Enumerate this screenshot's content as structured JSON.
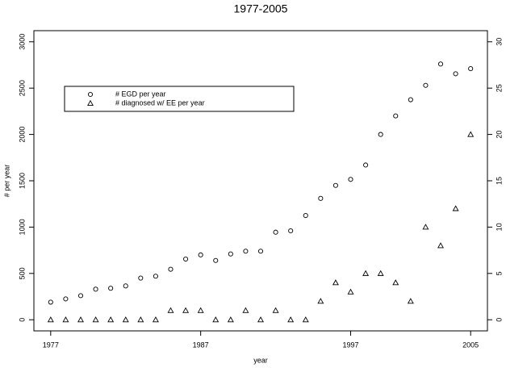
{
  "chart_data": {
    "type": "scatter",
    "title": "1977-2005",
    "xlabel": "year",
    "ylabel": "# per year",
    "x": [
      1977,
      1978,
      1979,
      1980,
      1981,
      1982,
      1983,
      1984,
      1985,
      1986,
      1987,
      1988,
      1989,
      1990,
      1991,
      1992,
      1993,
      1994,
      1995,
      1996,
      1997,
      1998,
      1999,
      2000,
      2001,
      2002,
      2003,
      2004,
      2005
    ],
    "series": [
      {
        "name": "# EGD per year",
        "color": "#000000",
        "marker": "circle",
        "axis": "y",
        "values": [
          190,
          225,
          260,
          330,
          340,
          365,
          450,
          470,
          545,
          655,
          700,
          640,
          710,
          740,
          740,
          945,
          960,
          1125,
          1310,
          1450,
          1515,
          1670,
          2000,
          2200,
          2375,
          2530,
          2760,
          2655,
          2710
        ]
      },
      {
        "name": "# diagnosed w/ EE per year",
        "color": "#000000",
        "marker": "triangle",
        "axis": "y2",
        "values": [
          0,
          0,
          0,
          0,
          0,
          0,
          0,
          0,
          1,
          1,
          1,
          0,
          0,
          1,
          0,
          1,
          0,
          0,
          2,
          4,
          3,
          5,
          5,
          4,
          2,
          10,
          8,
          12,
          20
        ]
      }
    ],
    "xlim": [
      1975.88,
      2006.12
    ],
    "xticks": [
      1977,
      1987,
      1997,
      2005
    ],
    "ylim": [
      -120,
      3120
    ],
    "yticks": [
      0,
      500,
      1000,
      1500,
      2000,
      2500,
      3000
    ],
    "y2lim": [
      -1.2,
      31.2
    ],
    "y2ticks": [
      0,
      5,
      10,
      15,
      20,
      25,
      30
    ],
    "legend": "top-left"
  }
}
